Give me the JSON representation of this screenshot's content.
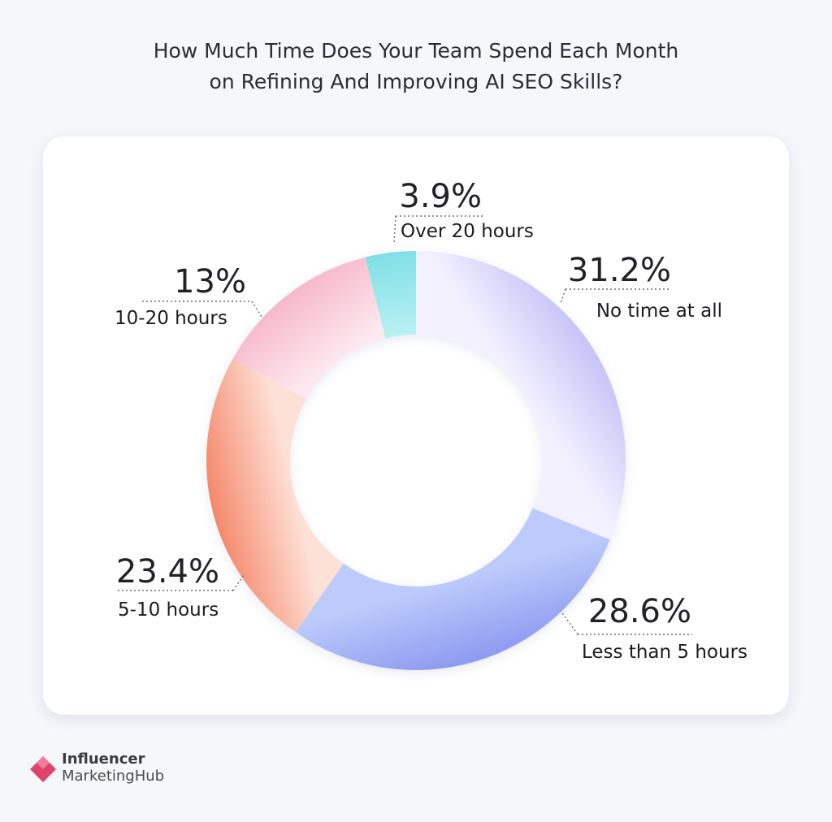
{
  "title": {
    "line1": "How Much Time Does Your Team Spend Each Month",
    "line2": "on Refining And Improving AI SEO Skills?"
  },
  "brand": {
    "line1": "Influencer",
    "line2_part1": "Marketing",
    "line2_part2": "Hub",
    "color": "#e0446a"
  },
  "chart_data": {
    "type": "pie",
    "donut": true,
    "title": "How Much Time Does Your Team Spend Each Month on Refining And Improving AI SEO Skills?",
    "slices": [
      {
        "label": "No time at all",
        "value": 31.2,
        "value_label": "31.2%",
        "color_a": "#c7c3f7",
        "color_b": "#f3f1ff"
      },
      {
        "label": "Less than 5 hours",
        "value": 28.6,
        "value_label": "28.6%",
        "color_a": "#8e9af0",
        "color_b": "#bccbfb"
      },
      {
        "label": "5-10 hours",
        "value": 23.4,
        "value_label": "23.4%",
        "color_a": "#f5886a",
        "color_b": "#fde0d6"
      },
      {
        "label": "10-20 hours",
        "value": 13,
        "value_label": "13%",
        "color_a": "#f7b8cc",
        "color_b": "#fde9ef"
      },
      {
        "label": "Over 20 hours",
        "value": 3.9,
        "value_label": "3.9%",
        "color_a": "#7fe0e6",
        "color_b": "#b9f1f4"
      }
    ]
  }
}
